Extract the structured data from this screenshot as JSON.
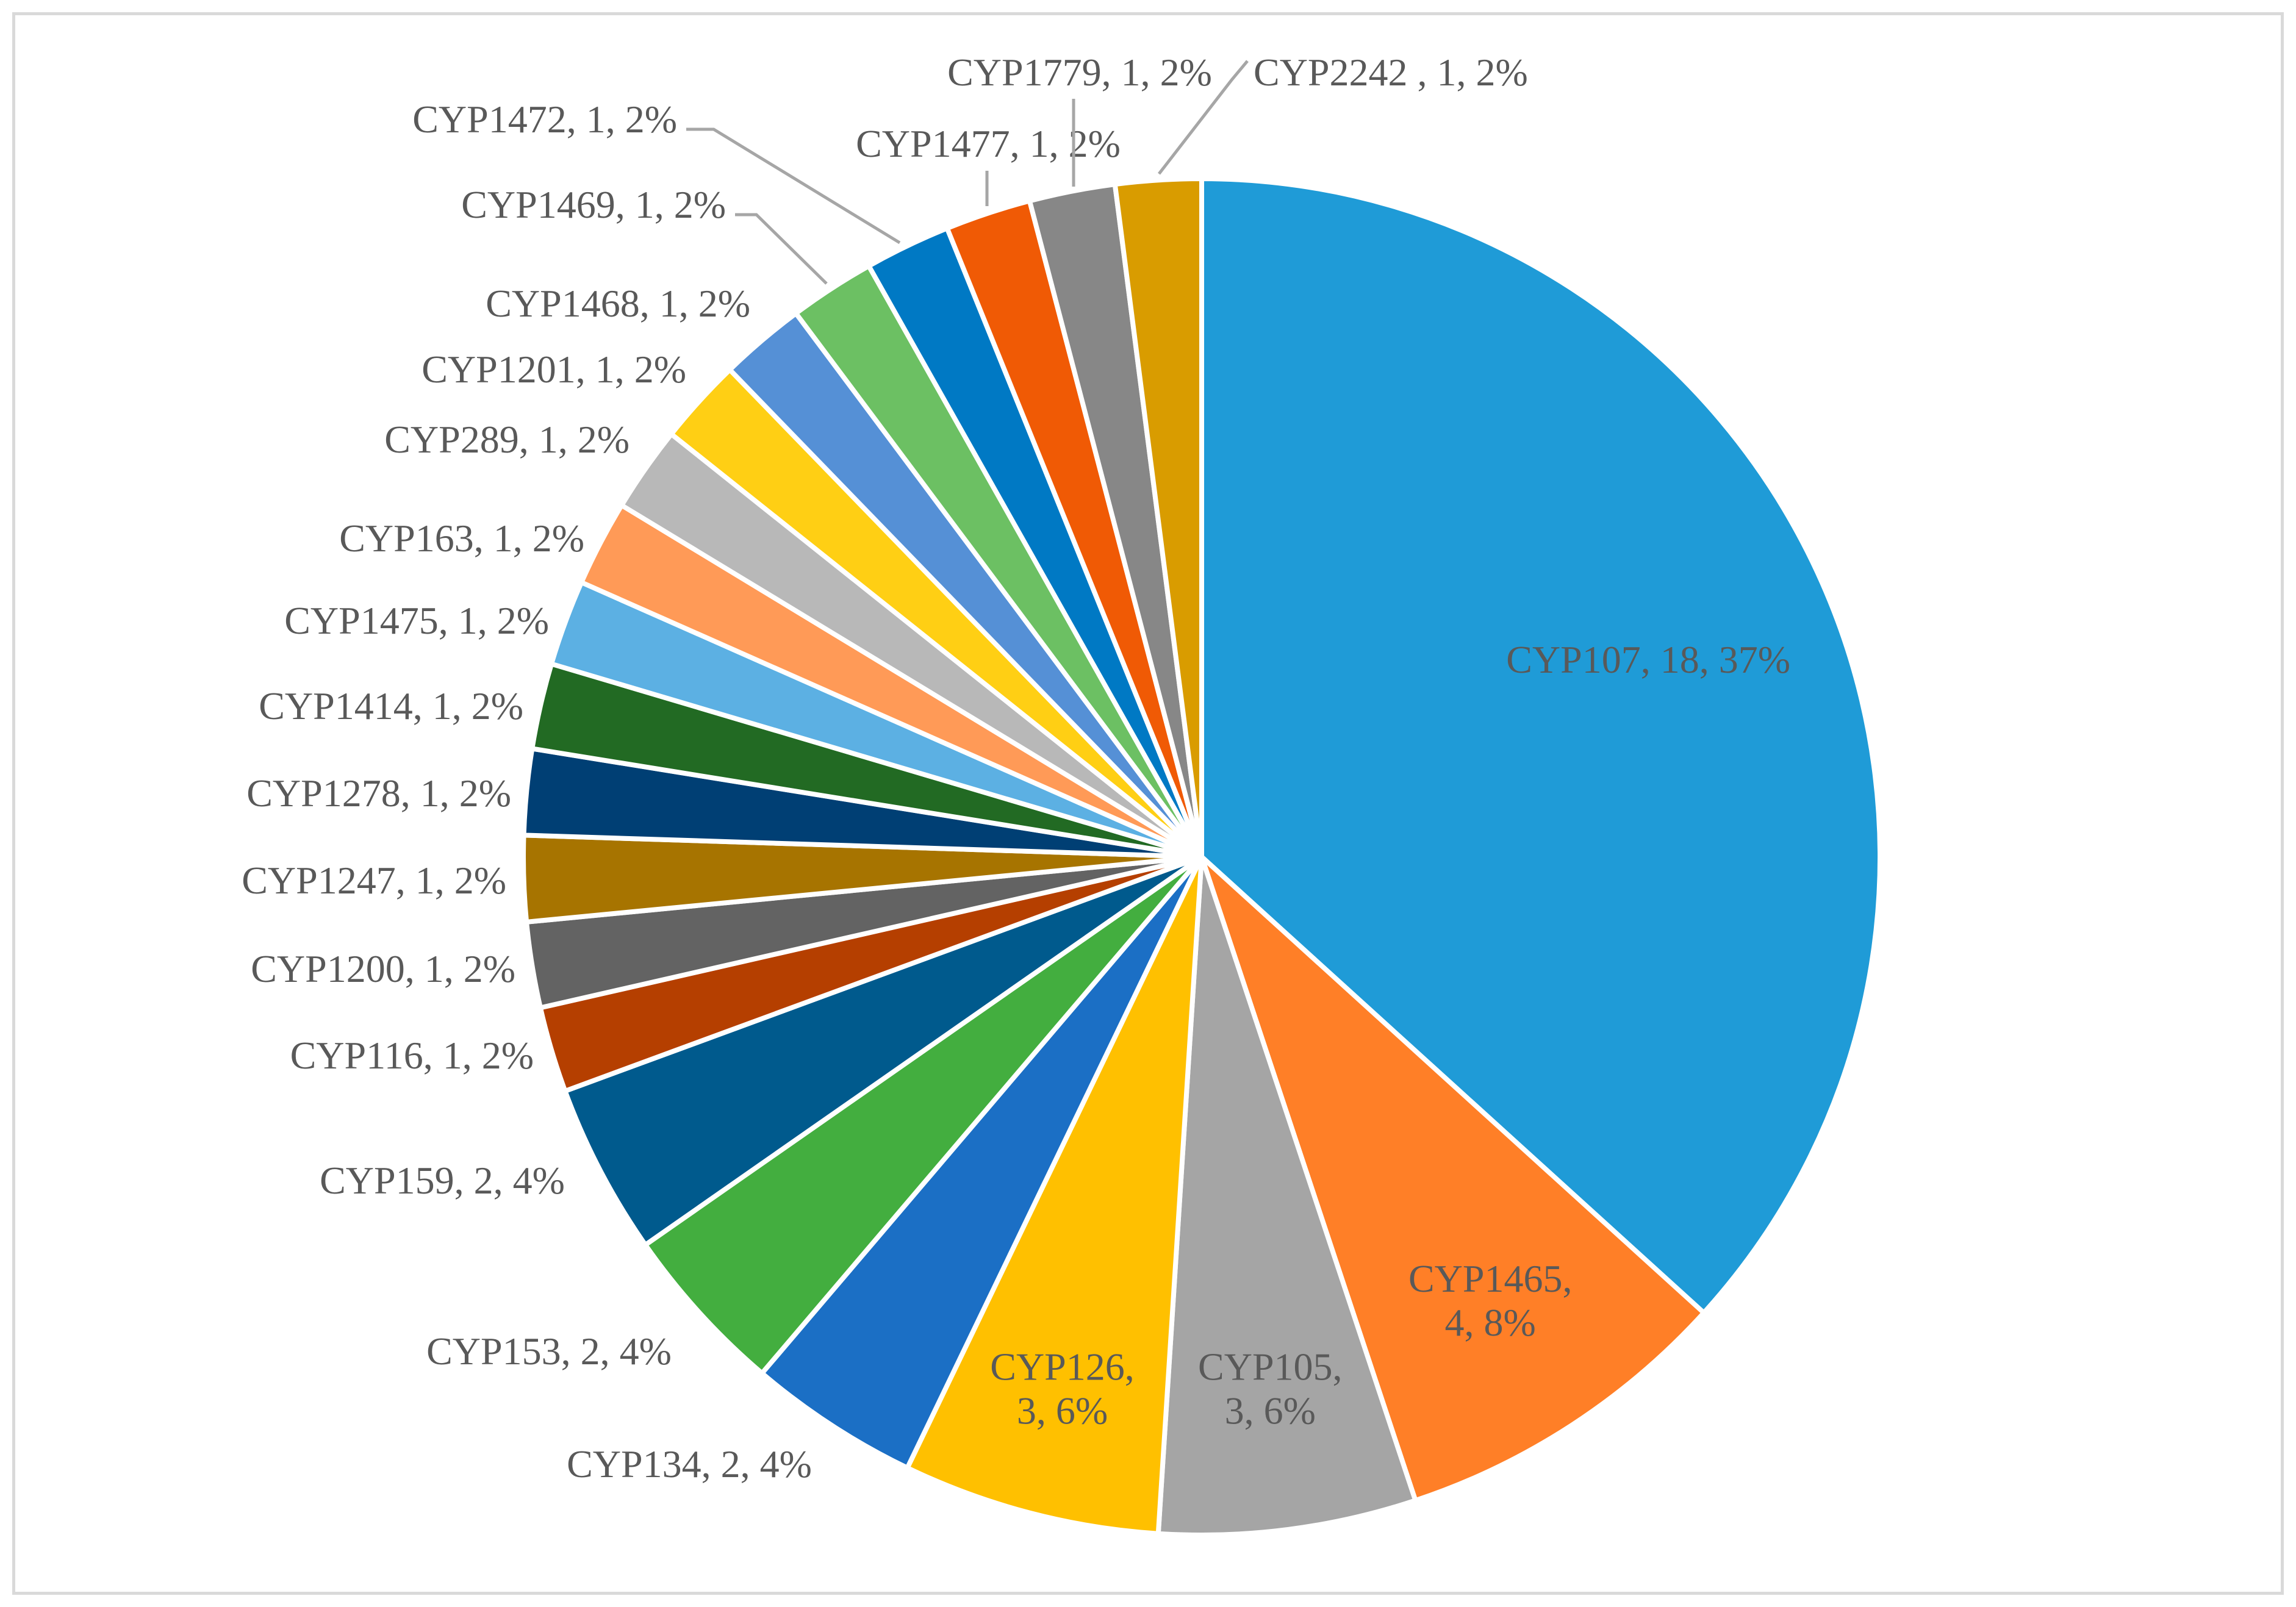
{
  "chart_data": {
    "type": "pie",
    "title": "",
    "start_angle_deg": 0,
    "direction": "clockwise",
    "legend": "none",
    "slices": [
      {
        "name": "CYP107",
        "value": 18,
        "percent": "37%",
        "label": "CYP107, 18, 37%",
        "color": "#1f9bd7"
      },
      {
        "name": "CYP1465",
        "value": 4,
        "percent": "8%",
        "label": "CYP1465, 4, 8%",
        "label_lines": [
          "CYP1465,",
          "4, 8%"
        ],
        "color": "#ff7f27"
      },
      {
        "name": "CYP105",
        "value": 3,
        "percent": "6%",
        "label": "CYP105, 3, 6%",
        "label_lines": [
          "CYP105,",
          "3, 6%"
        ],
        "color": "#a5a5a5"
      },
      {
        "name": "CYP126",
        "value": 3,
        "percent": "6%",
        "label": "CYP126, 3, 6%",
        "label_lines": [
          "CYP126,",
          "3, 6%"
        ],
        "color": "#ffc000"
      },
      {
        "name": "CYP134",
        "value": 2,
        "percent": "4%",
        "label": "CYP134, 2, 4%",
        "color": "#1b6fc5"
      },
      {
        "name": "CYP153",
        "value": 2,
        "percent": "4%",
        "label": "CYP153, 2, 4%",
        "color": "#43ae3f"
      },
      {
        "name": "CYP159",
        "value": 2,
        "percent": "4%",
        "label": "CYP159, 2, 4%",
        "color": "#005a8d"
      },
      {
        "name": "CYP116",
        "value": 1,
        "percent": "2%",
        "label": "CYP116, 1, 2%",
        "color": "#b53f00"
      },
      {
        "name": "CYP1200",
        "value": 1,
        "percent": "2%",
        "label": "CYP1200, 1, 2%",
        "color": "#636363"
      },
      {
        "name": "CYP1247",
        "value": 1,
        "percent": "2%",
        "label": "CYP1247, 1, 2%",
        "color": "#a77400"
      },
      {
        "name": "CYP1278",
        "value": 1,
        "percent": "2%",
        "label": "CYP1278, 1, 2%",
        "color": "#003f74"
      },
      {
        "name": "CYP1414",
        "value": 1,
        "percent": "2%",
        "label": "CYP1414, 1, 2%",
        "color": "#226a23"
      },
      {
        "name": "CYP1475",
        "value": 1,
        "percent": "2%",
        "label": "CYP1475, 1, 2%",
        "color": "#5cb0e3"
      },
      {
        "name": "CYP163",
        "value": 1,
        "percent": "2%",
        "label": "CYP163, 1, 2%",
        "color": "#ff9a57"
      },
      {
        "name": "CYP289",
        "value": 1,
        "percent": "2%",
        "label": "CYP289, 1, 2%",
        "color": "#b8b8b8"
      },
      {
        "name": "CYP1201",
        "value": 1,
        "percent": "2%",
        "label": "CYP1201, 1, 2%",
        "color": "#ffcf14"
      },
      {
        "name": "CYP1468",
        "value": 1,
        "percent": "2%",
        "label": "CYP1468, 1, 2%",
        "color": "#5590d6"
      },
      {
        "name": "CYP1469",
        "value": 1,
        "percent": "2%",
        "label": "CYP1469, 1, 2%",
        "color": "#6cc063"
      },
      {
        "name": "CYP1472",
        "value": 1,
        "percent": "2%",
        "label": "CYP1472, 1, 2%",
        "color": "#0079c4"
      },
      {
        "name": "CYP1477",
        "value": 1,
        "percent": "2%",
        "label": "CYP1477, 1, 2%",
        "color": "#f05a05"
      },
      {
        "name": "CYP1779",
        "value": 1,
        "percent": "2%",
        "label": "CYP1779, 1, 2%",
        "color": "#878787"
      },
      {
        "name": "CYP2242",
        "value": 1,
        "percent": "2%",
        "label": "CYP2242 , 1, 2%",
        "color": "#d99c00"
      }
    ]
  }
}
